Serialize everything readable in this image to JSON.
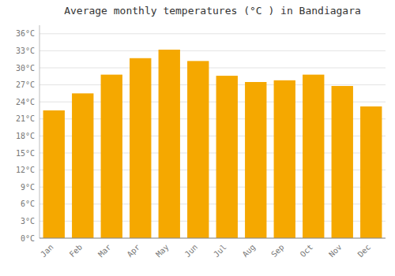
{
  "chart_data": {
    "type": "bar",
    "title": "Average monthly temperatures (°C ) in Bandiagara",
    "categories": [
      "Jan",
      "Feb",
      "Mar",
      "Apr",
      "May",
      "Jun",
      "Jul",
      "Aug",
      "Sep",
      "Oct",
      "Nov",
      "Dec"
    ],
    "values": [
      22.5,
      25.5,
      28.8,
      31.7,
      33.2,
      31.2,
      28.6,
      27.5,
      27.8,
      28.8,
      26.8,
      23.2
    ],
    "color": "#F5A800",
    "ylim": [
      0,
      37.5
    ],
    "yticks": [
      {
        "value": 0,
        "label": "0°C"
      },
      {
        "value": 3,
        "label": "3°C"
      },
      {
        "value": 6,
        "label": "6°C"
      },
      {
        "value": 9,
        "label": "9°C"
      },
      {
        "value": 12,
        "label": "12°C"
      },
      {
        "value": 15,
        "label": "15°C"
      },
      {
        "value": 18,
        "label": "18°C"
      },
      {
        "value": 21,
        "label": "21°C"
      },
      {
        "value": 24,
        "label": "24°C"
      },
      {
        "value": 27,
        "label": "27°C"
      },
      {
        "value": 30,
        "label": "30°C"
      },
      {
        "value": 33,
        "label": "33°C"
      },
      {
        "value": 36,
        "label": "36°C"
      }
    ],
    "grid": true
  }
}
